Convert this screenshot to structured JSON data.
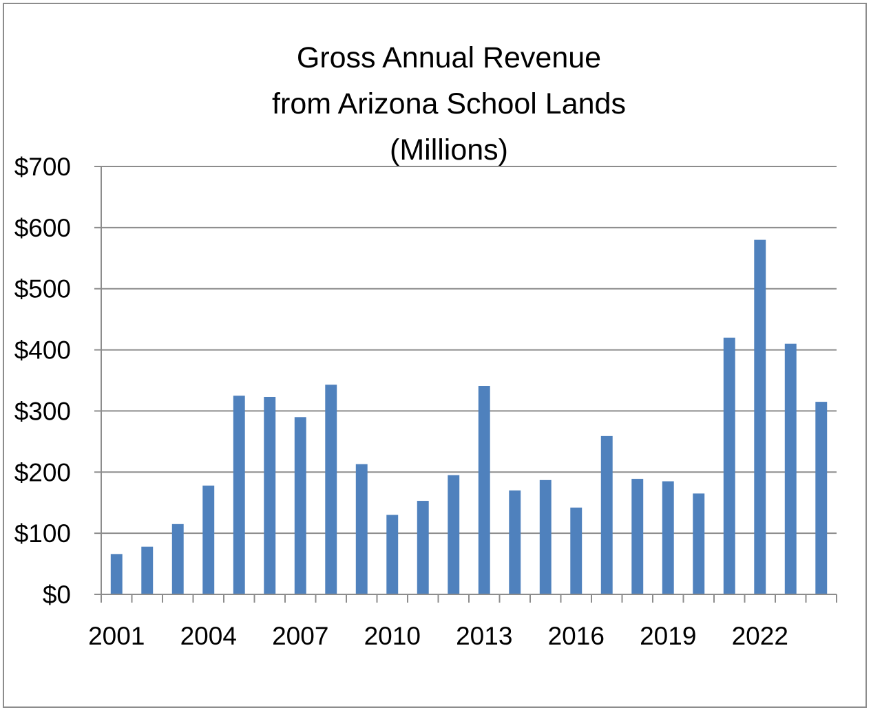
{
  "chart_data": {
    "type": "bar",
    "title": "Gross Annual Revenue\nfrom Arizona School Lands\n(Millions)",
    "xlabel": "",
    "ylabel": "",
    "categories": [
      "2001",
      "2002",
      "2003",
      "2004",
      "2005",
      "2006",
      "2007",
      "2008",
      "2009",
      "2010",
      "2011",
      "2012",
      "2013",
      "2014",
      "2015",
      "2016",
      "2017",
      "2018",
      "2019",
      "2020",
      "2021",
      "2022",
      "2023",
      "2024"
    ],
    "values": [
      66,
      78,
      115,
      178,
      325,
      323,
      290,
      343,
      213,
      130,
      153,
      195,
      341,
      170,
      187,
      142,
      259,
      189,
      185,
      165,
      420,
      580,
      410,
      315
    ],
    "x_tick_labels": [
      "2001",
      "2004",
      "2007",
      "2010",
      "2013",
      "2016",
      "2019",
      "2022"
    ],
    "y_tick_labels": [
      "$0",
      "$100",
      "$200",
      "$300",
      "$400",
      "$500",
      "$600",
      "$700"
    ],
    "y_ticks": [
      0,
      100,
      200,
      300,
      400,
      500,
      600,
      700
    ],
    "ylim": [
      0,
      700
    ],
    "grid": true,
    "legend": "none",
    "colors": {
      "bar": "#4f81bd",
      "grid": "#8c8c8c",
      "axis": "#8c8c8c"
    }
  }
}
